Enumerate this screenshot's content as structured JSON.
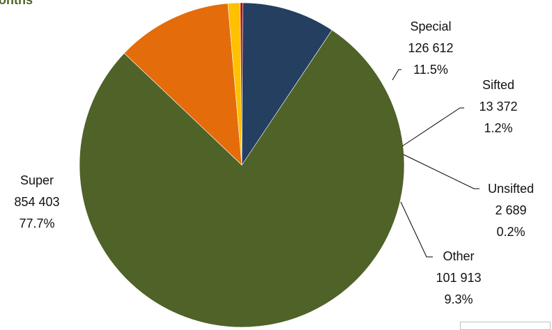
{
  "chart_data": {
    "type": "pie",
    "title": "onths",
    "title_color": "#4f6228",
    "slices": [
      {
        "name": "Super",
        "value": 854403,
        "value_label": "854 403",
        "percent_label": "77.7%",
        "color": "#4f6228"
      },
      {
        "name": "Special",
        "value": 126612,
        "value_label": "126 612",
        "percent_label": "11.5%",
        "color": "#e46c0a"
      },
      {
        "name": "Sifted",
        "value": 13372,
        "value_label": "13 372",
        "percent_label": "1.2%",
        "color": "#ffc000"
      },
      {
        "name": "Unsifted",
        "value": 2689,
        "value_label": "2 689",
        "percent_label": "0.2%",
        "color": "#c00000"
      },
      {
        "name": "Other",
        "value": 101913,
        "value_label": "101 913",
        "percent_label": "9.3%",
        "color": "#243f60"
      }
    ],
    "grid": false,
    "legend": "none"
  }
}
